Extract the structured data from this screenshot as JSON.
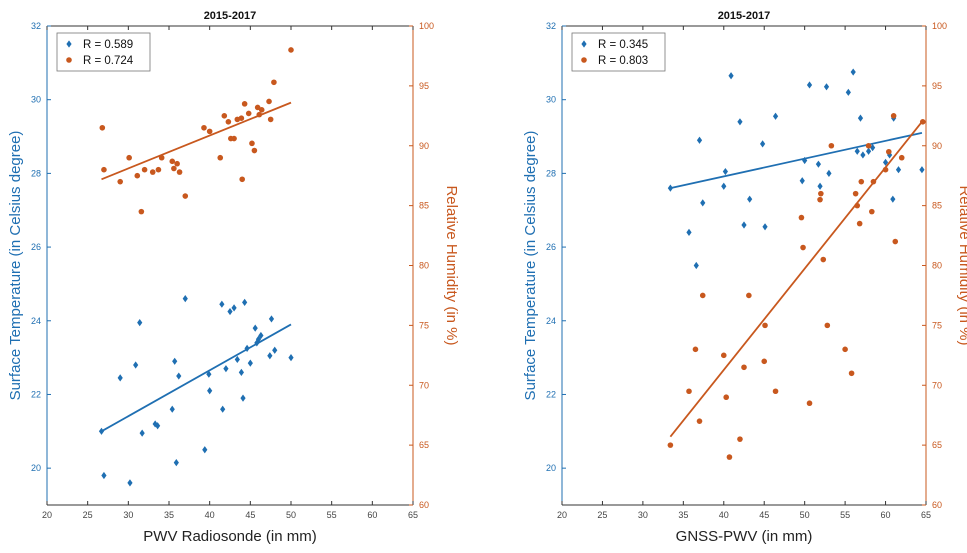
{
  "colors": {
    "blue": "#1f6fb2",
    "orange": "#c8581e",
    "axis": "#333333"
  },
  "chart_data": [
    {
      "type": "scatter",
      "title": "2015-2017",
      "xlabel": "PWV Radiosonde (in mm)",
      "ylabel_left": "Surface Temperature (in Celsius degree)",
      "ylabel_right": "Relative Humidity (in %)",
      "xlim": [
        20,
        65
      ],
      "ylim_left": [
        19,
        32
      ],
      "ylim_right": [
        60,
        100
      ],
      "xticks": [
        "20",
        "25",
        "30",
        "35",
        "40",
        "45",
        "50",
        "55",
        "60",
        "65"
      ],
      "yticks_left": [
        "20",
        "22",
        "24",
        "26",
        "28",
        "30",
        "32"
      ],
      "yticks_right": [
        "60",
        "65",
        "70",
        "75",
        "80",
        "85",
        "90",
        "95",
        "100"
      ],
      "legend_position": "top-left",
      "legend": [
        {
          "label": "R = 0.589",
          "axis": "left"
        },
        {
          "label": "R = 0.724",
          "axis": "right"
        }
      ],
      "series": [
        {
          "axis": "left",
          "marker": "diamond",
          "points": [
            [
              26.7,
              21.0
            ],
            [
              27.0,
              19.8
            ],
            [
              29.0,
              22.45
            ],
            [
              30.2,
              19.6
            ],
            [
              30.9,
              22.8
            ],
            [
              31.4,
              23.95
            ],
            [
              31.7,
              20.95
            ],
            [
              33.3,
              21.2
            ],
            [
              33.6,
              21.15
            ],
            [
              35.4,
              21.6
            ],
            [
              35.7,
              22.9
            ],
            [
              35.9,
              20.15
            ],
            [
              36.2,
              22.5
            ],
            [
              37.0,
              24.6
            ],
            [
              39.4,
              20.5
            ],
            [
              39.9,
              22.55
            ],
            [
              40.0,
              22.1
            ],
            [
              41.5,
              24.45
            ],
            [
              41.6,
              21.6
            ],
            [
              42.0,
              22.7
            ],
            [
              42.5,
              24.25
            ],
            [
              43.0,
              24.35
            ],
            [
              43.4,
              22.95
            ],
            [
              43.9,
              22.6
            ],
            [
              44.1,
              21.9
            ],
            [
              44.3,
              24.5
            ],
            [
              44.6,
              23.25
            ],
            [
              45.0,
              22.85
            ],
            [
              45.6,
              23.8
            ],
            [
              45.8,
              23.4
            ],
            [
              46.0,
              23.5
            ],
            [
              46.3,
              23.6
            ],
            [
              47.4,
              23.05
            ],
            [
              47.6,
              24.05
            ],
            [
              48.0,
              23.2
            ],
            [
              50.0,
              23.0
            ]
          ],
          "fit": [
            [
              26.7,
              21.0
            ],
            [
              50.0,
              23.9
            ]
          ]
        },
        {
          "axis": "right",
          "marker": "circle",
          "points": [
            [
              26.8,
              91.5
            ],
            [
              27.0,
              88.0
            ],
            [
              29.0,
              87.0
            ],
            [
              30.1,
              89.0
            ],
            [
              31.1,
              87.5
            ],
            [
              31.6,
              84.5
            ],
            [
              32.0,
              88.0
            ],
            [
              33.0,
              87.8
            ],
            [
              33.7,
              88.0
            ],
            [
              34.1,
              89.0
            ],
            [
              35.4,
              88.7
            ],
            [
              35.6,
              88.1
            ],
            [
              36.0,
              88.5
            ],
            [
              36.3,
              87.8
            ],
            [
              37.0,
              85.8
            ],
            [
              39.3,
              91.5
            ],
            [
              40.0,
              91.2
            ],
            [
              41.3,
              89.0
            ],
            [
              41.8,
              92.5
            ],
            [
              42.3,
              92.0
            ],
            [
              42.6,
              90.6
            ],
            [
              43.0,
              90.6
            ],
            [
              43.4,
              92.2
            ],
            [
              43.9,
              92.3
            ],
            [
              44.0,
              87.2
            ],
            [
              44.3,
              93.5
            ],
            [
              44.8,
              92.7
            ],
            [
              45.2,
              90.2
            ],
            [
              45.5,
              89.6
            ],
            [
              45.9,
              93.2
            ],
            [
              46.1,
              92.6
            ],
            [
              46.4,
              93.0
            ],
            [
              47.3,
              93.7
            ],
            [
              47.5,
              92.2
            ],
            [
              47.9,
              95.3
            ],
            [
              50.0,
              98.0
            ]
          ],
          "fit": [
            [
              26.7,
              87.2
            ],
            [
              50.0,
              93.6
            ]
          ]
        }
      ]
    },
    {
      "type": "scatter",
      "title": "2015-2017",
      "xlabel": "GNSS-PWV (in mm)",
      "ylabel_left": "Surface Temperature (in Celsius degree)",
      "ylabel_right": "Relative Humidity (in %)",
      "xlim": [
        20,
        65
      ],
      "ylim_left": [
        19,
        32
      ],
      "ylim_right": [
        60,
        100
      ],
      "xticks": [
        "20",
        "25",
        "30",
        "35",
        "40",
        "45",
        "50",
        "55",
        "60",
        "65"
      ],
      "yticks_left": [
        "20",
        "22",
        "24",
        "26",
        "28",
        "30",
        "32"
      ],
      "yticks_right": [
        "60",
        "65",
        "70",
        "75",
        "80",
        "85",
        "90",
        "95",
        "100"
      ],
      "legend_position": "top-left",
      "legend": [
        {
          "label": "R = 0.345",
          "axis": "left"
        },
        {
          "label": "R = 0.803",
          "axis": "right"
        }
      ],
      "series": [
        {
          "axis": "left",
          "marker": "diamond",
          "points": [
            [
              33.4,
              27.6
            ],
            [
              35.7,
              26.4
            ],
            [
              36.6,
              25.5
            ],
            [
              37.0,
              28.9
            ],
            [
              37.4,
              27.2
            ],
            [
              40.0,
              27.65
            ],
            [
              40.2,
              28.05
            ],
            [
              40.9,
              30.65
            ],
            [
              42.0,
              29.4
            ],
            [
              42.5,
              26.6
            ],
            [
              43.2,
              27.3
            ],
            [
              44.8,
              28.8
            ],
            [
              45.1,
              26.55
            ],
            [
              46.4,
              29.55
            ],
            [
              49.7,
              27.8
            ],
            [
              50.0,
              28.35
            ],
            [
              50.6,
              30.4
            ],
            [
              51.7,
              28.25
            ],
            [
              51.9,
              27.65
            ],
            [
              52.7,
              30.35
            ],
            [
              53.0,
              28.0
            ],
            [
              55.4,
              30.2
            ],
            [
              56.0,
              30.75
            ],
            [
              56.5,
              28.6
            ],
            [
              56.9,
              29.5
            ],
            [
              57.2,
              28.5
            ],
            [
              57.9,
              28.6
            ],
            [
              58.4,
              28.7
            ],
            [
              60.0,
              28.3
            ],
            [
              60.5,
              28.5
            ],
            [
              60.9,
              27.3
            ],
            [
              61.0,
              29.5
            ],
            [
              61.6,
              28.1
            ],
            [
              64.5,
              28.1
            ]
          ],
          "fit": [
            [
              33.4,
              27.6
            ],
            [
              64.5,
              29.1
            ]
          ]
        },
        {
          "axis": "right",
          "marker": "circle",
          "points": [
            [
              33.4,
              65.0
            ],
            [
              35.7,
              69.5
            ],
            [
              36.5,
              73.0
            ],
            [
              37.0,
              67.0
            ],
            [
              37.4,
              77.5
            ],
            [
              40.0,
              72.5
            ],
            [
              40.3,
              69.0
            ],
            [
              40.7,
              64.0
            ],
            [
              42.0,
              65.5
            ],
            [
              42.5,
              71.5
            ],
            [
              43.1,
              77.5
            ],
            [
              45.0,
              72.0
            ],
            [
              45.1,
              75.0
            ],
            [
              46.4,
              69.5
            ],
            [
              49.6,
              84.0
            ],
            [
              49.8,
              81.5
            ],
            [
              50.6,
              68.5
            ],
            [
              51.9,
              85.5
            ],
            [
              52.0,
              86.0
            ],
            [
              52.3,
              80.5
            ],
            [
              52.8,
              75.0
            ],
            [
              53.3,
              90.0
            ],
            [
              55.0,
              73.0
            ],
            [
              55.8,
              71.0
            ],
            [
              56.3,
              86.0
            ],
            [
              56.5,
              85.0
            ],
            [
              56.8,
              83.5
            ],
            [
              57.0,
              87.0
            ],
            [
              57.9,
              90.0
            ],
            [
              58.3,
              84.5
            ],
            [
              58.5,
              87.0
            ],
            [
              60.0,
              88.0
            ],
            [
              60.4,
              89.5
            ],
            [
              61.0,
              92.5
            ],
            [
              61.2,
              82.0
            ],
            [
              62.0,
              89.0
            ],
            [
              64.6,
              92.0
            ]
          ],
          "fit": [
            [
              33.4,
              65.7
            ],
            [
              64.5,
              92.0
            ]
          ]
        }
      ]
    }
  ]
}
